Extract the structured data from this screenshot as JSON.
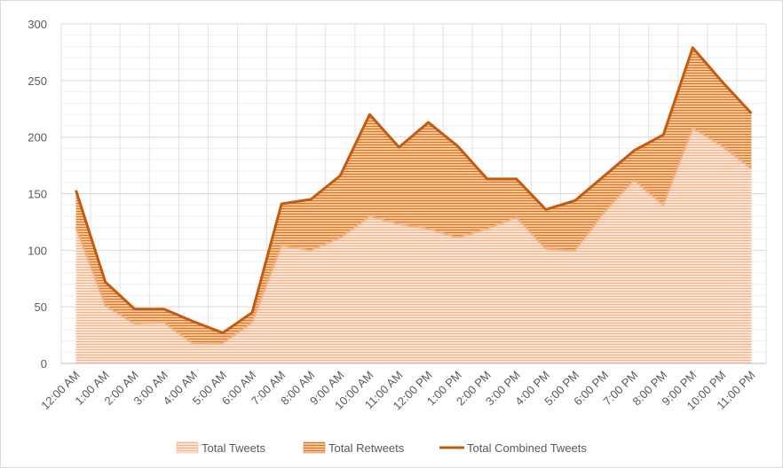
{
  "chart_data": {
    "type": "area",
    "stacked": true,
    "title": "",
    "xlabel": "",
    "ylabel": "",
    "ylim": [
      0,
      300
    ],
    "yticks": [
      0,
      50,
      100,
      150,
      200,
      250,
      300
    ],
    "grid": true,
    "legend_position": "bottom",
    "categories": [
      "12:00 AM",
      "1:00 AM",
      "2:00 AM",
      "3:00 AM",
      "4:00 AM",
      "5:00 AM",
      "6:00 AM",
      "7:00 AM",
      "8:00 AM",
      "9:00 AM",
      "10:00 AM",
      "11:00 AM",
      "12:00 PM",
      "1:00 PM",
      "2:00 PM",
      "3:00 PM",
      "4:00 PM",
      "5:00 PM",
      "6:00 PM",
      "7:00 PM",
      "8:00 PM",
      "9:00 PM",
      "10:00 PM",
      "11:00 PM"
    ],
    "series": [
      {
        "name": "Total Tweets",
        "kind": "area",
        "color": "#f4b183",
        "values": [
          120,
          51,
          35,
          36,
          17,
          18,
          36,
          104,
          100,
          111,
          130,
          123,
          119,
          111,
          119,
          129,
          101,
          100,
          134,
          162,
          140,
          208,
          192,
          172
        ]
      },
      {
        "name": "Total Retweets",
        "kind": "area",
        "color": "#e08a3c",
        "values": [
          33,
          21,
          13,
          12,
          20,
          9,
          9,
          37,
          45,
          55,
          90,
          68,
          94,
          81,
          44,
          34,
          35,
          44,
          32,
          26,
          62,
          71,
          57,
          49
        ]
      },
      {
        "name": "Total Combined Tweets",
        "kind": "line",
        "color": "#c55a11",
        "values": [
          153,
          72,
          48,
          48,
          37,
          27,
          45,
          141,
          145,
          166,
          220,
          191,
          213,
          192,
          163,
          163,
          136,
          144,
          166,
          188,
          202,
          279,
          249,
          221
        ]
      }
    ]
  }
}
